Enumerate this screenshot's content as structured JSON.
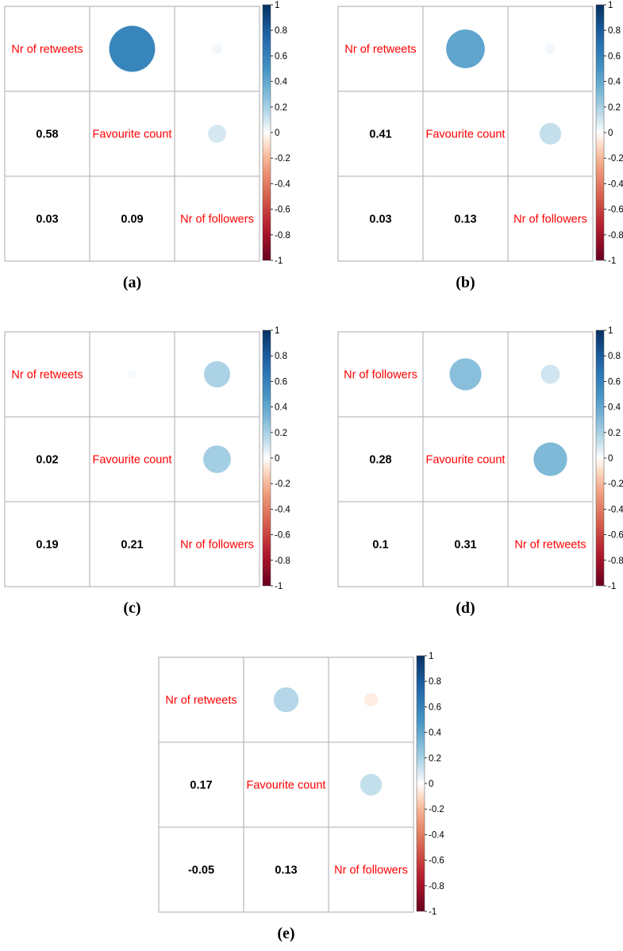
{
  "color_scale": {
    "min_color": "#67001f",
    "mid_color": "#ffffff",
    "max_color": "#053061",
    "text_color": "#ff0000",
    "grid_color": "#bdbdbd"
  },
  "chart_data": [
    {
      "type": "heatmap",
      "caption": "(a)",
      "variables": [
        "Nr of retweets",
        "Favourite count",
        "Nr of followers"
      ],
      "correlations": [
        [
          1,
          0.58,
          0.03
        ],
        [
          0.58,
          1,
          0.09
        ],
        [
          0.03,
          0.09,
          1
        ]
      ],
      "lower_labels": [
        {
          "row": 1,
          "col": 0,
          "text": "0.58"
        },
        {
          "row": 2,
          "col": 0,
          "text": "0.03"
        },
        {
          "row": 2,
          "col": 1,
          "text": "0.09"
        }
      ],
      "colorbar": {
        "range": [
          -1,
          1
        ],
        "ticks": [
          "1",
          "0.8",
          "0.6",
          "0.4",
          "0.2",
          "0",
          "-0.2",
          "-0.4",
          "-0.6",
          "-0.8",
          "-1"
        ]
      }
    },
    {
      "type": "heatmap",
      "caption": "(b)",
      "variables": [
        "Nr of retweets",
        "Favourite count",
        "Nr of followers"
      ],
      "correlations": [
        [
          1,
          0.41,
          0.03
        ],
        [
          0.41,
          1,
          0.13
        ],
        [
          0.03,
          0.13,
          1
        ]
      ],
      "lower_labels": [
        {
          "row": 1,
          "col": 0,
          "text": "0.41"
        },
        {
          "row": 2,
          "col": 0,
          "text": "0.03"
        },
        {
          "row": 2,
          "col": 1,
          "text": "0.13"
        }
      ],
      "colorbar": {
        "range": [
          -1,
          1
        ],
        "ticks": [
          "1",
          "0.8",
          "0.6",
          "0.4",
          "0.2",
          "0",
          "-0.2",
          "-0.4",
          "-0.6",
          "-0.8",
          "-1"
        ]
      }
    },
    {
      "type": "heatmap",
      "caption": "(c)",
      "variables": [
        "Nr of retweets",
        "Favourite count",
        "Nr of followers"
      ],
      "correlations": [
        [
          1,
          0.02,
          0.19
        ],
        [
          0.02,
          1,
          0.21
        ],
        [
          0.19,
          0.21,
          1
        ]
      ],
      "lower_labels": [
        {
          "row": 1,
          "col": 0,
          "text": "0.02"
        },
        {
          "row": 2,
          "col": 0,
          "text": "0.19"
        },
        {
          "row": 2,
          "col": 1,
          "text": "0.21"
        }
      ],
      "colorbar": {
        "range": [
          -1,
          1
        ],
        "ticks": [
          "1",
          "0.8",
          "0.6",
          "0.4",
          "0.2",
          "0",
          "-0.2",
          "-0.4",
          "-0.6",
          "-0.8",
          "-1"
        ]
      }
    },
    {
      "type": "heatmap",
      "caption": "(d)",
      "variables": [
        "Nr of followers",
        "Favourite count",
        "Nr of retweets"
      ],
      "correlations": [
        [
          1,
          0.28,
          0.1
        ],
        [
          0.28,
          1,
          0.31
        ],
        [
          0.1,
          0.31,
          1
        ]
      ],
      "lower_labels": [
        {
          "row": 1,
          "col": 0,
          "text": "0.28"
        },
        {
          "row": 2,
          "col": 0,
          "text": "0.1"
        },
        {
          "row": 2,
          "col": 1,
          "text": "0.31"
        }
      ],
      "colorbar": {
        "range": [
          -1,
          1
        ],
        "ticks": [
          "1",
          "0.8",
          "0.6",
          "0.4",
          "0.2",
          "0",
          "-0.2",
          "-0.4",
          "-0.6",
          "-0.8",
          "-1"
        ]
      }
    },
    {
      "type": "heatmap",
      "caption": "(e)",
      "variables": [
        "Nr of retweets",
        "Favourite count",
        "Nr of followers"
      ],
      "correlations": [
        [
          1,
          0.17,
          -0.05
        ],
        [
          0.17,
          1,
          0.13
        ],
        [
          -0.05,
          0.13,
          1
        ]
      ],
      "lower_labels": [
        {
          "row": 1,
          "col": 0,
          "text": "0.17"
        },
        {
          "row": 2,
          "col": 0,
          "text": "-0.05"
        },
        {
          "row": 2,
          "col": 1,
          "text": "0.13"
        }
      ],
      "colorbar": {
        "range": [
          -1,
          1
        ],
        "ticks": [
          "1",
          "0.8",
          "0.6",
          "0.4",
          "0.2",
          "0",
          "-0.2",
          "-0.4",
          "-0.6",
          "-0.8",
          "-1"
        ]
      }
    }
  ]
}
